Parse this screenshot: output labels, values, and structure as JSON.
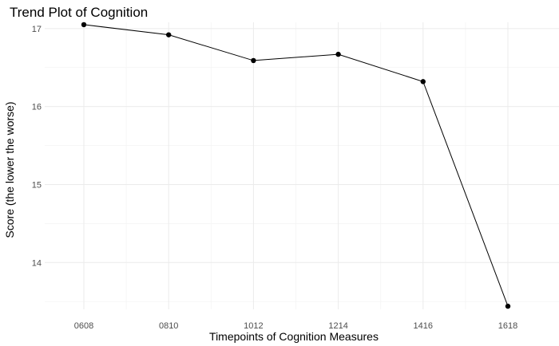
{
  "chart_data": {
    "type": "line",
    "title": "Trend Plot of Cognition",
    "xlabel": "Timepoints of Cognition Measures",
    "ylabel": "Score (the lower the worse)",
    "categories": [
      "0608",
      "0810",
      "1012",
      "1214",
      "1416",
      "1618"
    ],
    "values": [
      17.05,
      16.92,
      16.59,
      16.67,
      16.32,
      13.44
    ],
    "ylim": [
      13.4,
      17.08
    ],
    "yticks": [
      "14",
      "15",
      "16",
      "17"
    ],
    "grid": true,
    "colors": {
      "line": "#000000",
      "points": "#000000",
      "grid": "#ebebeb"
    }
  }
}
